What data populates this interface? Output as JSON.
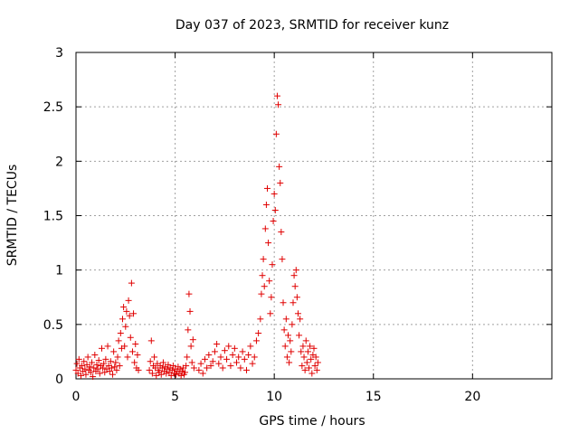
{
  "chart_data": {
    "type": "scatter",
    "title": "Day 037 of 2023, SRMTID for receiver kunz",
    "xlabel": "GPS time / hours",
    "ylabel": "SRMTID / TECUs",
    "xlim": [
      0,
      24
    ],
    "ylim": [
      0,
      3
    ],
    "xticks": [
      0,
      5,
      10,
      15,
      20
    ],
    "yticks": [
      0,
      0.5,
      1,
      1.5,
      2,
      2.5,
      3
    ],
    "xtick_labels": [
      "0",
      "5",
      "10",
      "15",
      "20"
    ],
    "ytick_labels": [
      "0",
      "0.5",
      "1",
      "1.5",
      "2",
      "2.5",
      "3"
    ],
    "grid": true,
    "marker": "+",
    "color": "#e00000",
    "points": [
      [
        0.0,
        0.08
      ],
      [
        0.05,
        0.14
      ],
      [
        0.1,
        0.05
      ],
      [
        0.15,
        0.18
      ],
      [
        0.2,
        0.1
      ],
      [
        0.25,
        0.03
      ],
      [
        0.3,
        0.12
      ],
      [
        0.35,
        0.07
      ],
      [
        0.4,
        0.16
      ],
      [
        0.45,
        0.09
      ],
      [
        0.5,
        0.04
      ],
      [
        0.55,
        0.13
      ],
      [
        0.6,
        0.2
      ],
      [
        0.65,
        0.08
      ],
      [
        0.7,
        0.11
      ],
      [
        0.75,
        0.06
      ],
      [
        0.8,
        0.15
      ],
      [
        0.85,
        0.02
      ],
      [
        0.9,
        0.1
      ],
      [
        0.95,
        0.22
      ],
      [
        1.0,
        0.07
      ],
      [
        1.05,
        0.13
      ],
      [
        1.1,
        0.09
      ],
      [
        1.15,
        0.17
      ],
      [
        1.2,
        0.05
      ],
      [
        1.25,
        0.12
      ],
      [
        1.3,
        0.28
      ],
      [
        1.35,
        0.1
      ],
      [
        1.4,
        0.14
      ],
      [
        1.45,
        0.06
      ],
      [
        1.5,
        0.18
      ],
      [
        1.55,
        0.09
      ],
      [
        1.6,
        0.3
      ],
      [
        1.65,
        0.12
      ],
      [
        1.7,
        0.07
      ],
      [
        1.75,
        0.16
      ],
      [
        1.8,
        0.1
      ],
      [
        1.85,
        0.04
      ],
      [
        1.9,
        0.25
      ],
      [
        1.95,
        0.11
      ],
      [
        2.0,
        0.15
      ],
      [
        2.05,
        0.08
      ],
      [
        2.1,
        0.2
      ],
      [
        2.15,
        0.35
      ],
      [
        2.2,
        0.12
      ],
      [
        2.25,
        0.42
      ],
      [
        2.3,
        0.28
      ],
      [
        2.35,
        0.55
      ],
      [
        2.4,
        0.66
      ],
      [
        2.45,
        0.3
      ],
      [
        2.5,
        0.48
      ],
      [
        2.55,
        0.62
      ],
      [
        2.6,
        0.2
      ],
      [
        2.65,
        0.72
      ],
      [
        2.7,
        0.58
      ],
      [
        2.75,
        0.38
      ],
      [
        2.8,
        0.88
      ],
      [
        2.85,
        0.25
      ],
      [
        2.9,
        0.6
      ],
      [
        2.95,
        0.15
      ],
      [
        3.0,
        0.32
      ],
      [
        3.05,
        0.1
      ],
      [
        3.1,
        0.22
      ],
      [
        3.15,
        0.08
      ],
      [
        3.7,
        0.08
      ],
      [
        3.75,
        0.16
      ],
      [
        3.8,
        0.35
      ],
      [
        3.85,
        0.05
      ],
      [
        3.9,
        0.12
      ],
      [
        3.95,
        0.2
      ],
      [
        4.0,
        0.1
      ],
      [
        4.05,
        0.03
      ],
      [
        4.1,
        0.14
      ],
      [
        4.15,
        0.08
      ],
      [
        4.2,
        0.06
      ],
      [
        4.25,
        0.12
      ],
      [
        4.3,
        0.04
      ],
      [
        4.35,
        0.1
      ],
      [
        4.4,
        0.15
      ],
      [
        4.45,
        0.07
      ],
      [
        4.5,
        0.11
      ],
      [
        4.55,
        0.05
      ],
      [
        4.6,
        0.09
      ],
      [
        4.65,
        0.13
      ],
      [
        4.7,
        0.06
      ],
      [
        4.75,
        0.1
      ],
      [
        4.8,
        0.03
      ],
      [
        4.85,
        0.08
      ],
      [
        4.9,
        0.12
      ],
      [
        4.95,
        0.05
      ],
      [
        5.0,
        0.09
      ],
      [
        5.05,
        0.04
      ],
      [
        5.1,
        0.07
      ],
      [
        5.15,
        0.11
      ],
      [
        5.2,
        0.05
      ],
      [
        5.25,
        0.09
      ],
      [
        5.3,
        0.03
      ],
      [
        5.35,
        0.07
      ],
      [
        5.4,
        0.1
      ],
      [
        5.45,
        0.04
      ],
      [
        5.5,
        0.06
      ],
      [
        5.55,
        0.12
      ],
      [
        5.6,
        0.2
      ],
      [
        5.65,
        0.45
      ],
      [
        5.7,
        0.78
      ],
      [
        5.75,
        0.62
      ],
      [
        5.8,
        0.3
      ],
      [
        5.85,
        0.15
      ],
      [
        5.9,
        0.36
      ],
      [
        5.95,
        0.1
      ],
      [
        6.2,
        0.08
      ],
      [
        6.3,
        0.14
      ],
      [
        6.4,
        0.05
      ],
      [
        6.5,
        0.18
      ],
      [
        6.6,
        0.1
      ],
      [
        6.7,
        0.22
      ],
      [
        6.8,
        0.12
      ],
      [
        6.9,
        0.16
      ],
      [
        7.0,
        0.25
      ],
      [
        7.1,
        0.32
      ],
      [
        7.2,
        0.14
      ],
      [
        7.3,
        0.2
      ],
      [
        7.4,
        0.1
      ],
      [
        7.5,
        0.26
      ],
      [
        7.6,
        0.18
      ],
      [
        7.7,
        0.3
      ],
      [
        7.8,
        0.12
      ],
      [
        7.9,
        0.22
      ],
      [
        8.0,
        0.28
      ],
      [
        8.1,
        0.15
      ],
      [
        8.2,
        0.2
      ],
      [
        8.3,
        0.1
      ],
      [
        8.4,
        0.25
      ],
      [
        8.5,
        0.18
      ],
      [
        8.6,
        0.08
      ],
      [
        8.7,
        0.22
      ],
      [
        8.8,
        0.3
      ],
      [
        8.9,
        0.14
      ],
      [
        9.0,
        0.2
      ],
      [
        9.1,
        0.35
      ],
      [
        9.2,
        0.42
      ],
      [
        9.3,
        0.55
      ],
      [
        9.35,
        0.78
      ],
      [
        9.4,
        0.95
      ],
      [
        9.45,
        1.1
      ],
      [
        9.5,
        0.85
      ],
      [
        9.55,
        1.38
      ],
      [
        9.6,
        1.6
      ],
      [
        9.65,
        1.75
      ],
      [
        9.7,
        1.25
      ],
      [
        9.75,
        0.9
      ],
      [
        9.8,
        0.6
      ],
      [
        9.85,
        0.75
      ],
      [
        9.9,
        1.05
      ],
      [
        9.95,
        1.45
      ],
      [
        10.0,
        1.7
      ],
      [
        10.05,
        1.55
      ],
      [
        10.1,
        2.25
      ],
      [
        10.15,
        2.6
      ],
      [
        10.2,
        2.52
      ],
      [
        10.25,
        1.95
      ],
      [
        10.3,
        1.8
      ],
      [
        10.35,
        1.35
      ],
      [
        10.4,
        1.1
      ],
      [
        10.45,
        0.7
      ],
      [
        10.5,
        0.45
      ],
      [
        10.55,
        0.3
      ],
      [
        10.6,
        0.55
      ],
      [
        10.65,
        0.2
      ],
      [
        10.7,
        0.4
      ],
      [
        10.75,
        0.15
      ],
      [
        10.8,
        0.35
      ],
      [
        10.85,
        0.25
      ],
      [
        10.9,
        0.5
      ],
      [
        10.95,
        0.7
      ],
      [
        11.0,
        0.95
      ],
      [
        11.05,
        0.85
      ],
      [
        11.1,
        1.0
      ],
      [
        11.15,
        0.75
      ],
      [
        11.2,
        0.6
      ],
      [
        11.25,
        0.4
      ],
      [
        11.3,
        0.55
      ],
      [
        11.35,
        0.25
      ],
      [
        11.4,
        0.12
      ],
      [
        11.45,
        0.3
      ],
      [
        11.5,
        0.2
      ],
      [
        11.55,
        0.08
      ],
      [
        11.6,
        0.35
      ],
      [
        11.65,
        0.15
      ],
      [
        11.7,
        0.25
      ],
      [
        11.75,
        0.1
      ],
      [
        11.8,
        0.3
      ],
      [
        11.85,
        0.18
      ],
      [
        11.9,
        0.05
      ],
      [
        11.95,
        0.22
      ],
      [
        12.0,
        0.28
      ],
      [
        12.05,
        0.12
      ],
      [
        12.1,
        0.2
      ],
      [
        12.15,
        0.08
      ],
      [
        12.2,
        0.15
      ]
    ]
  }
}
